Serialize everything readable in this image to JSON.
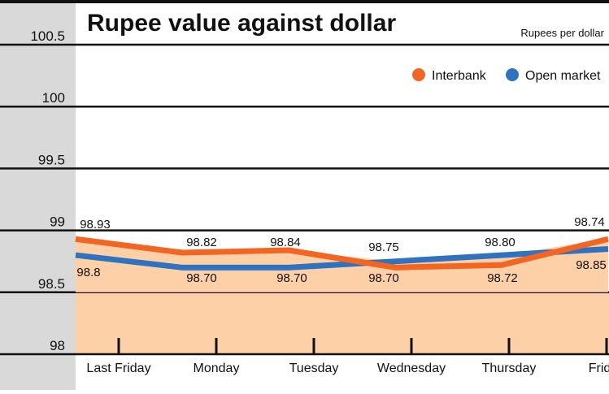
{
  "chart_data": {
    "type": "line",
    "title": "Rupee value against dollar",
    "unit_label": "Rupees per dollar",
    "categories": [
      "Last Friday",
      "Monday",
      "Tuesday",
      "Wednesday",
      "Thursday",
      "Friday"
    ],
    "ylim": [
      98,
      100.5
    ],
    "yticks": [
      "100.5",
      "100",
      "99.5",
      "99",
      "98.5",
      "98"
    ],
    "grid": true,
    "legend_position": "top-right",
    "series": [
      {
        "name": "Interbank",
        "color": "#f26522",
        "values": [
          98.93,
          98.82,
          98.84,
          98.7,
          98.72,
          98.93
        ],
        "labels": [
          "98.93",
          "98.82",
          "98.84",
          "98.70",
          "98.72",
          ""
        ]
      },
      {
        "name": "Open market",
        "color": "#2f72c0",
        "values": [
          98.8,
          98.7,
          98.7,
          98.75,
          98.8,
          98.85
        ],
        "labels": [
          "98.8",
          "98.70",
          "98.70",
          "98.75",
          "98.80",
          "98.85"
        ]
      }
    ],
    "extra_labels": [
      "98.74"
    ],
    "fill_color": "#fdd0a8",
    "axis_panel_color": "#d9d9d9"
  }
}
